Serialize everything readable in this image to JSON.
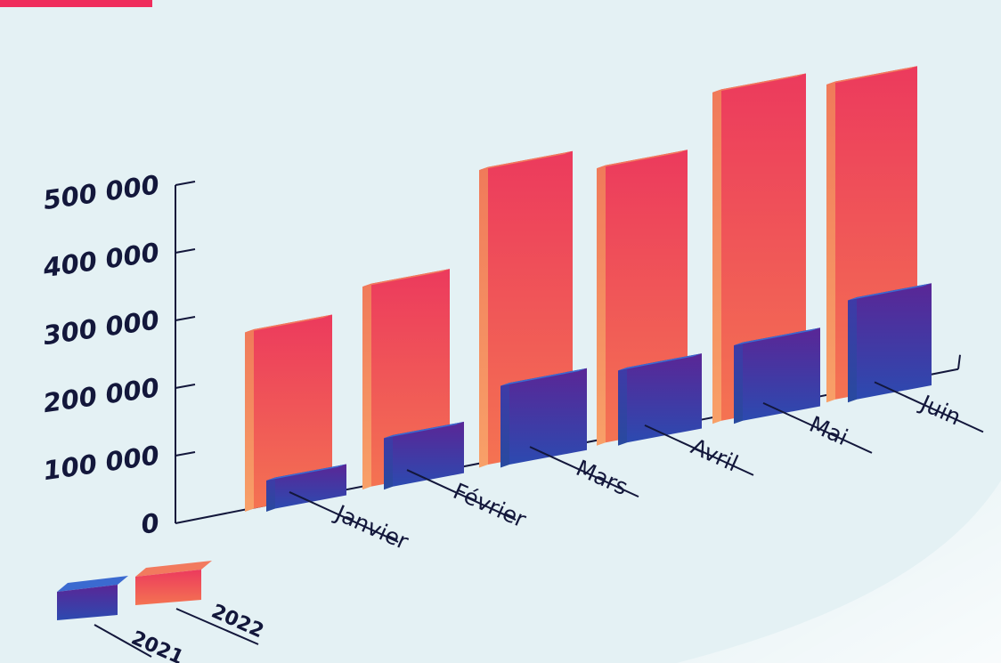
{
  "chart_data": {
    "type": "bar",
    "categories": [
      "Janvier",
      "Février",
      "Mars",
      "Avril",
      "Mai",
      "Juin"
    ],
    "series": [
      {
        "name": "2021",
        "values": [
          40000,
          70000,
          115000,
          105000,
          110000,
          145000
        ]
      },
      {
        "name": "2022",
        "values": [
          265000,
          300000,
          440000,
          410000,
          490000,
          470000
        ]
      }
    ],
    "yticks": [
      "0",
      "100 000",
      "200 000",
      "300 000",
      "400 000",
      "500 000"
    ],
    "ylim": [
      0,
      500000
    ],
    "legend_position": "bottom-left",
    "colors": {
      "2021_top": "#2a4fb5",
      "2021_bottom": "#55248f",
      "2022_top": "#ee3d5e",
      "2022_bottom": "#f47052",
      "2022_side": "#f28a5c",
      "accent_bar": "#ef2d5c",
      "axis": "#13173b",
      "background": "#e4f1f4"
    }
  }
}
